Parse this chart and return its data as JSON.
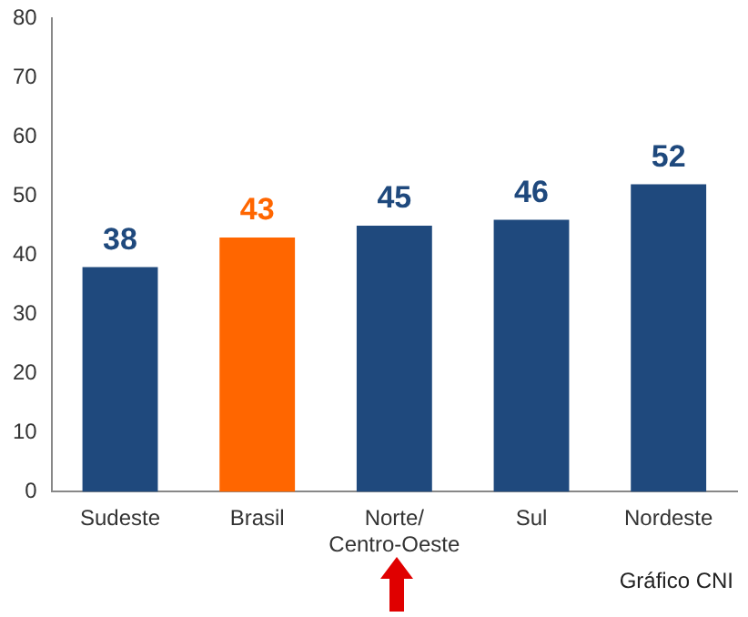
{
  "chart_data": {
    "type": "bar",
    "categories": [
      "Sudeste",
      "Brasil",
      "Norte/Centro-Oeste",
      "Sul",
      "Nordeste"
    ],
    "values": [
      38,
      43,
      45,
      46,
      52
    ],
    "colors": [
      "#1f497d",
      "#ff6600",
      "#1f497d",
      "#1f497d",
      "#1f497d"
    ],
    "ylim": [
      0,
      80
    ],
    "yticks": [
      0,
      10,
      20,
      30,
      40,
      50,
      60,
      70,
      80
    ],
    "grid": false,
    "legend": false,
    "data_labels": true,
    "annotations": [
      "Gráfico CNI"
    ]
  }
}
